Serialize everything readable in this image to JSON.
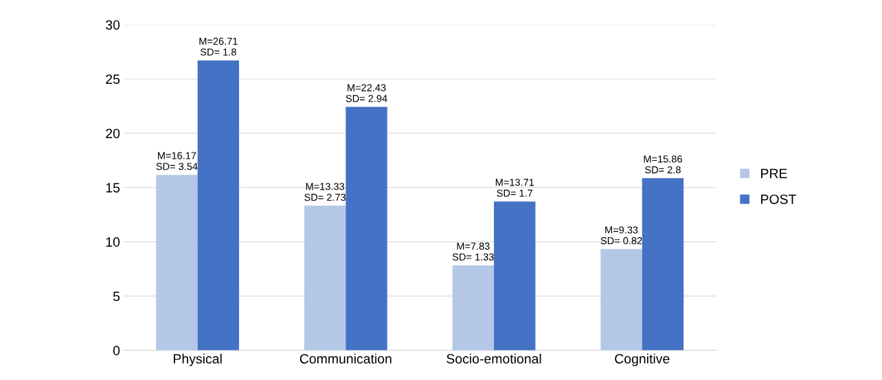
{
  "chart_data": {
    "type": "bar",
    "categories": [
      "Physical",
      "Communication",
      "Socio-emotional",
      "Cognitive"
    ],
    "series": [
      {
        "name": "PRE",
        "color": "#b4c7e7",
        "values": [
          16.17,
          13.33,
          7.83,
          9.33
        ],
        "value_labels": [
          "M=16.17\nSD= 3.54",
          "M=13.33\nSD= 2.73",
          "M=7.83\nSD= 1.33",
          "M=9.33\nSD= 0.82"
        ]
      },
      {
        "name": "POST",
        "color": "#4472c4",
        "values": [
          26.71,
          22.43,
          13.71,
          15.86
        ],
        "value_labels": [
          "M=26.71\nSD= 1.8",
          "M=22.43\nSD= 2.94",
          "M=13.71\nSD= 1.7",
          "M=15.86\nSD= 2.8"
        ]
      }
    ],
    "ylim": [
      0,
      30
    ],
    "yticks": [
      0,
      5,
      10,
      15,
      20,
      25,
      30
    ],
    "grid": "y",
    "legend": "right"
  }
}
